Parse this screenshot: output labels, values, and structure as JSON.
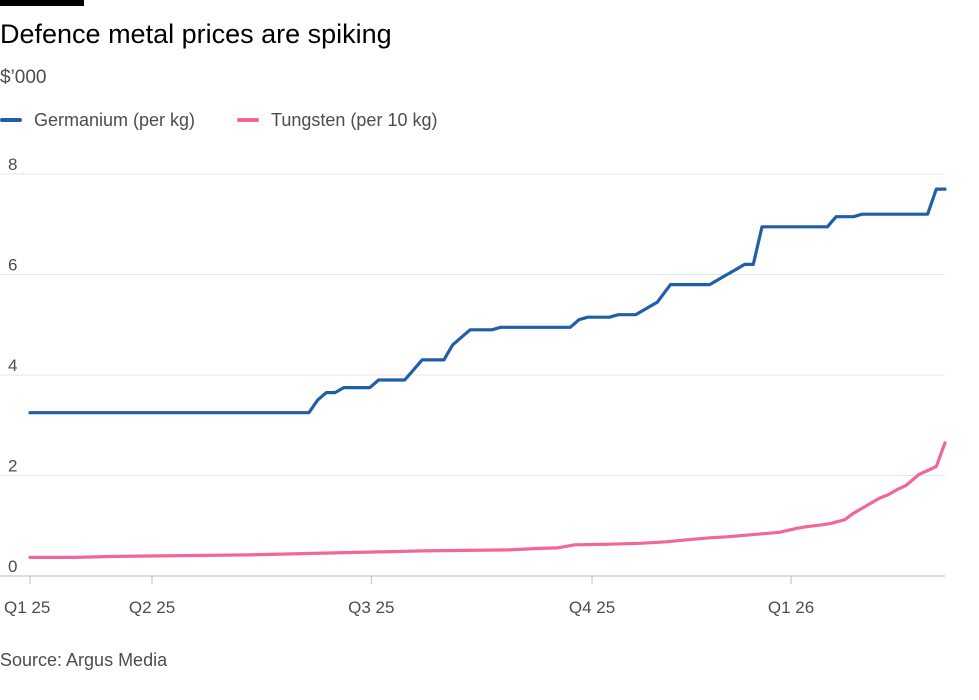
{
  "header": {
    "title": "Defence metal prices are spiking",
    "unit_label": "$’000"
  },
  "legend": [
    {
      "label": "Germanium (per kg)",
      "color": "#1f5fa8"
    },
    {
      "label": "Tungsten (per 10 kg)",
      "color": "#f2669d"
    }
  ],
  "footer": {
    "source": "Source: Argus Media"
  },
  "chart_data": {
    "type": "line",
    "title": "Defence metal prices are spiking",
    "ylabel": "$’000",
    "xlabel": "",
    "ylim": [
      0,
      8
    ],
    "yticks": [
      0,
      2,
      4,
      6,
      8
    ],
    "grid": true,
    "xlim": [
      0,
      63
    ],
    "x_unit": "weeks since start of Q1 25",
    "xticks": [
      {
        "label": "Q1 25",
        "x": 0
      },
      {
        "label": "Q2 25",
        "x": 8.4
      },
      {
        "label": "Q3 25",
        "x": 23.5
      },
      {
        "label": "Q4 25",
        "x": 38.7
      },
      {
        "label": "Q1 26",
        "x": 52.4
      }
    ],
    "series": [
      {
        "name": "Germanium (per kg)",
        "color": "#1f5fa8",
        "x": [
          0,
          19.2,
          19.8,
          20.4,
          21.0,
          21.6,
          23.4,
          24.0,
          25.8,
          26.4,
          27.0,
          28.5,
          29.1,
          29.7,
          30.3,
          31.8,
          32.4,
          33.0,
          37.2,
          37.8,
          38.4,
          39.9,
          40.5,
          41.7,
          43.2,
          44.1,
          46.8,
          47.7,
          48.6,
          49.2,
          49.8,
          50.4,
          54.9,
          55.5,
          56.7,
          57.3,
          61.8,
          62.4,
          63.0
        ],
        "values": [
          3.25,
          3.25,
          3.5,
          3.65,
          3.65,
          3.75,
          3.75,
          3.9,
          3.9,
          4.1,
          4.3,
          4.3,
          4.6,
          4.75,
          4.9,
          4.9,
          4.95,
          4.95,
          4.95,
          5.1,
          5.15,
          5.15,
          5.2,
          5.2,
          5.45,
          5.8,
          5.8,
          5.95,
          6.1,
          6.2,
          6.2,
          6.95,
          6.95,
          7.15,
          7.15,
          7.2,
          7.2,
          7.7,
          7.7
        ]
      },
      {
        "name": "Tungsten (per 10 kg)",
        "color": "#f2669d",
        "x": [
          0,
          3.0,
          6.0,
          9.0,
          12.0,
          15.0,
          18.0,
          21.0,
          24.0,
          27.0,
          30.0,
          33.0,
          35.1,
          36.3,
          37.5,
          39.6,
          42.0,
          43.8,
          45.6,
          46.8,
          48.0,
          49.2,
          50.4,
          51.6,
          52.8,
          53.4,
          54.6,
          55.2,
          56.1,
          56.7,
          57.3,
          57.9,
          58.5,
          59.1,
          59.7,
          60.3,
          61.2,
          62.4,
          63.0
        ],
        "values": [
          0.37,
          0.37,
          0.39,
          0.4,
          0.41,
          0.42,
          0.44,
          0.46,
          0.48,
          0.5,
          0.51,
          0.52,
          0.55,
          0.56,
          0.62,
          0.63,
          0.65,
          0.68,
          0.73,
          0.76,
          0.78,
          0.81,
          0.84,
          0.87,
          0.95,
          0.98,
          1.02,
          1.05,
          1.12,
          1.25,
          1.35,
          1.45,
          1.55,
          1.62,
          1.72,
          1.8,
          2.02,
          2.18,
          2.65
        ]
      }
    ]
  }
}
